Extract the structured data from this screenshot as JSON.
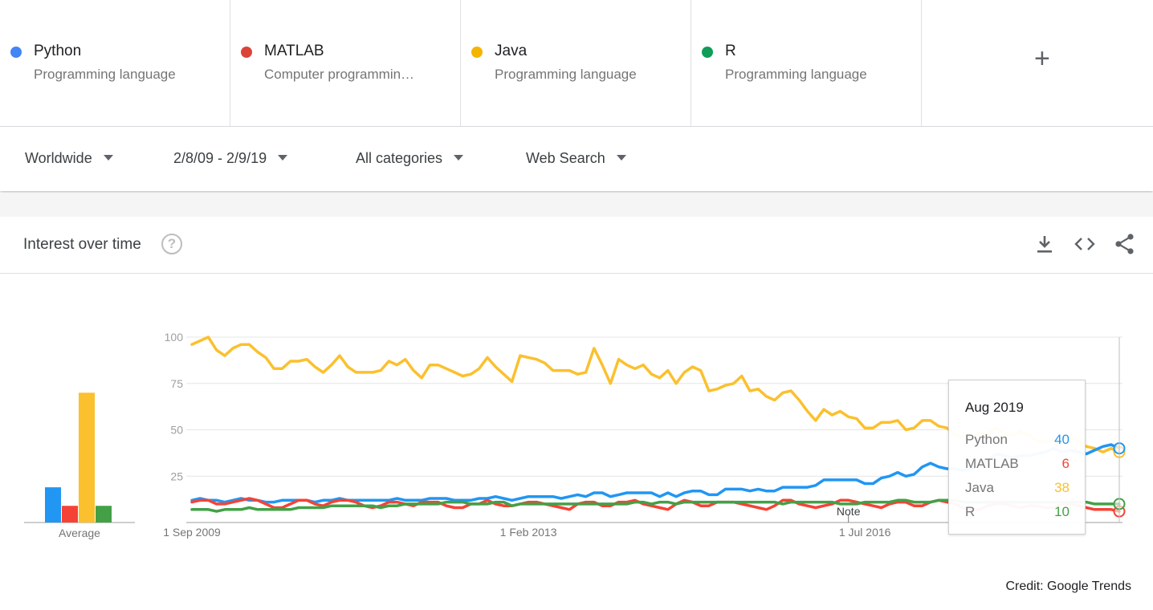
{
  "terms": [
    {
      "name": "Python",
      "sub": "Programming language",
      "color": "#4285f4"
    },
    {
      "name": "MATLAB",
      "sub": "Computer programmin…",
      "color": "#db4437"
    },
    {
      "name": "Java",
      "sub": "Programming language",
      "color": "#f4b400"
    },
    {
      "name": "R",
      "sub": "Programming language",
      "color": "#0f9d58"
    }
  ],
  "add_term_label": "+",
  "filters": {
    "region": "Worldwide",
    "date_range": "2/8/09 - 2/9/19",
    "category": "All categories",
    "search_type": "Web Search"
  },
  "card": {
    "title": "Interest over time",
    "help_icon": "?",
    "icons": [
      "download-icon",
      "embed-icon",
      "share-icon"
    ]
  },
  "tooltip": {
    "title": "Aug 2019",
    "rows": [
      {
        "label": "Python",
        "value": "40"
      },
      {
        "label": "MATLAB",
        "value": "6"
      },
      {
        "label": "Java",
        "value": "38"
      },
      {
        "label": "R",
        "value": "10"
      }
    ]
  },
  "credit": "Credit: Google Trends",
  "chart_data": {
    "type": "line",
    "ylim": [
      0,
      100
    ],
    "yticks": [
      "100",
      "75",
      "50",
      "25"
    ],
    "xtick_labels": [
      "1 Sep 2009",
      "1 Feb 2013",
      "1 Jul 2016"
    ],
    "xtick_index": [
      0,
      41,
      82
    ],
    "note_label": "Note",
    "note_index": 80,
    "average_label": "Average",
    "averages": [
      {
        "name": "Python",
        "value": 19,
        "color": "#2196f3"
      },
      {
        "name": "MATLAB",
        "value": 9,
        "color": "#f44336"
      },
      {
        "name": "Java",
        "value": 70,
        "color": "#fbc02d"
      },
      {
        "name": "R",
        "value": 9,
        "color": "#43a047"
      }
    ],
    "series": [
      {
        "name": "Java",
        "color": "#fbc02d",
        "values": [
          96,
          98,
          100,
          93,
          90,
          94,
          96,
          96,
          92,
          89,
          83,
          83,
          87,
          87,
          88,
          84,
          81,
          85,
          90,
          84,
          81,
          81,
          81,
          82,
          87,
          85,
          88,
          82,
          78,
          85,
          85,
          83,
          81,
          79,
          80,
          83,
          89,
          84,
          80,
          76,
          90,
          89,
          88,
          86,
          82,
          82,
          82,
          80,
          81,
          94,
          85,
          75,
          88,
          85,
          83,
          85,
          80,
          78,
          82,
          75,
          81,
          84,
          82,
          71,
          72,
          74,
          75,
          79,
          71,
          72,
          68,
          66,
          70,
          71,
          66,
          60,
          55,
          61,
          58,
          60,
          57,
          56,
          51,
          51,
          54,
          54,
          55,
          50,
          51,
          55,
          55,
          52,
          51,
          47,
          46,
          46,
          48,
          48,
          51,
          48,
          47,
          49,
          47,
          44,
          43,
          45,
          44,
          46,
          44,
          41,
          40,
          38,
          40,
          38
        ]
      },
      {
        "name": "Python",
        "color": "#2196f3",
        "values": [
          12,
          13,
          12,
          12,
          11,
          12,
          13,
          12,
          12,
          11,
          11,
          12,
          12,
          12,
          12,
          11,
          12,
          12,
          13,
          12,
          12,
          12,
          12,
          12,
          12,
          13,
          12,
          12,
          12,
          13,
          13,
          13,
          12,
          12,
          12,
          13,
          13,
          14,
          13,
          12,
          13,
          14,
          14,
          14,
          14,
          13,
          14,
          15,
          14,
          16,
          16,
          14,
          15,
          16,
          16,
          16,
          16,
          14,
          16,
          14,
          16,
          17,
          17,
          15,
          15,
          18,
          18,
          18,
          17,
          18,
          17,
          17,
          19,
          19,
          19,
          19,
          20,
          23,
          23,
          23,
          23,
          23,
          21,
          21,
          24,
          25,
          27,
          25,
          26,
          30,
          32,
          30,
          29,
          29,
          28,
          29,
          31,
          34,
          37,
          36,
          35,
          36,
          36,
          37,
          38,
          40,
          38,
          39,
          38,
          37,
          39,
          41,
          42,
          40
        ]
      },
      {
        "name": "MATLAB",
        "color": "#f44336",
        "values": [
          11,
          12,
          12,
          10,
          10,
          11,
          12,
          13,
          12,
          10,
          8,
          8,
          10,
          12,
          12,
          10,
          9,
          11,
          12,
          12,
          11,
          9,
          8,
          9,
          11,
          11,
          10,
          9,
          11,
          11,
          11,
          9,
          8,
          8,
          10,
          10,
          12,
          10,
          9,
          9,
          10,
          11,
          11,
          10,
          9,
          8,
          7,
          10,
          11,
          11,
          9,
          9,
          11,
          11,
          12,
          10,
          9,
          8,
          7,
          10,
          12,
          11,
          9,
          9,
          11,
          11,
          11,
          10,
          9,
          8,
          7,
          9,
          12,
          12,
          10,
          9,
          8,
          9,
          10,
          12,
          12,
          11,
          10,
          9,
          8,
          10,
          11,
          11,
          9,
          9,
          11,
          12,
          11,
          10,
          8,
          7,
          7,
          9,
          10,
          10,
          9,
          8,
          9,
          9,
          8,
          8,
          10,
          10,
          9,
          8,
          7,
          7,
          7,
          6
        ]
      },
      {
        "name": "R",
        "color": "#43a047",
        "values": [
          7,
          7,
          7,
          6,
          7,
          7,
          7,
          8,
          7,
          7,
          7,
          7,
          7,
          8,
          8,
          8,
          8,
          9,
          9,
          9,
          9,
          9,
          9,
          8,
          9,
          9,
          10,
          10,
          10,
          10,
          10,
          11,
          11,
          11,
          10,
          10,
          10,
          11,
          11,
          9,
          10,
          10,
          10,
          10,
          10,
          10,
          10,
          10,
          10,
          10,
          10,
          10,
          10,
          10,
          11,
          11,
          10,
          11,
          11,
          10,
          11,
          11,
          11,
          11,
          11,
          11,
          11,
          11,
          11,
          11,
          11,
          11,
          10,
          11,
          11,
          11,
          11,
          11,
          11,
          10,
          10,
          10,
          11,
          11,
          11,
          11,
          12,
          12,
          11,
          11,
          11,
          12,
          12,
          12,
          11,
          11,
          11,
          11,
          11,
          11,
          11,
          11,
          11,
          11,
          11,
          11,
          11,
          11,
          11,
          11,
          10,
          10,
          10,
          10
        ]
      }
    ]
  }
}
